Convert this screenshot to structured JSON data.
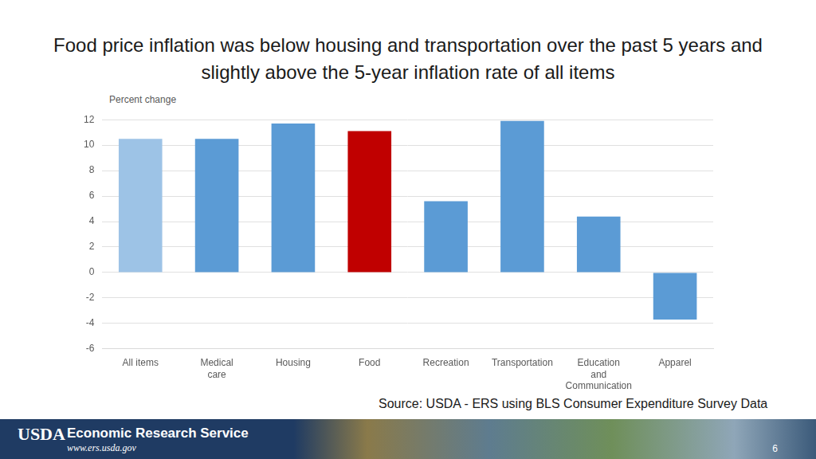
{
  "chart_data": {
    "type": "bar",
    "title": "Food price inflation was below housing and transportation over the past 5 years and slightly above the 5-year inflation rate of all items",
    "y_label": "Percent change",
    "categories": [
      "All items",
      "Medical care",
      "Housing",
      "Food",
      "Recreation",
      "Transportation",
      "Education and Communication",
      "Apparel"
    ],
    "values": [
      10.5,
      10.5,
      11.7,
      11.1,
      5.6,
      11.9,
      4.4,
      -3.7
    ],
    "colors": [
      "#9dc3e6",
      "#5b9bd5",
      "#5b9bd5",
      "#c00000",
      "#5b9bd5",
      "#5b9bd5",
      "#5b9bd5",
      "#5b9bd5"
    ],
    "ylim": [
      -6,
      12
    ],
    "yticks": [
      -6,
      -4,
      -2,
      0,
      2,
      4,
      6,
      8,
      10,
      12
    ],
    "grid": true,
    "source": "Source: USDA - ERS using BLS Consumer Expenditure Survey Data",
    "footer": {
      "logo": "USDA",
      "agency": "Economic Research Service",
      "url": "www.ers.usda.gov",
      "page": "6"
    }
  }
}
